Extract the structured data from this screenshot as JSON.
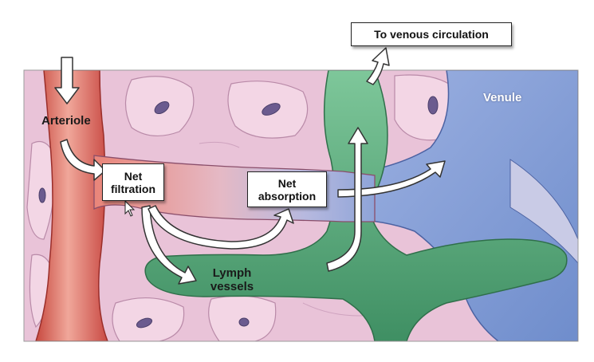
{
  "labels": {
    "arteriole": "Arteriole",
    "venule": "Venule",
    "lymph_line1": "Lymph",
    "lymph_line2": "vessels"
  },
  "boxes": {
    "venous": "To venous circulation",
    "net_filtration_line1": "Net",
    "net_filtration_line2": "filtration",
    "net_absorption_line1": "Net",
    "net_absorption_line2": "absorption"
  },
  "colors": {
    "tissue": "#e9c3d8",
    "arteriole": "#e2675f",
    "capillary": "#d8a6b8",
    "venule": "#8aa3d6",
    "lymph": "#5fab7f",
    "cell_nucleus": "#6b5b8f"
  },
  "icons": {
    "cursor": "mouse-pointer-icon"
  }
}
